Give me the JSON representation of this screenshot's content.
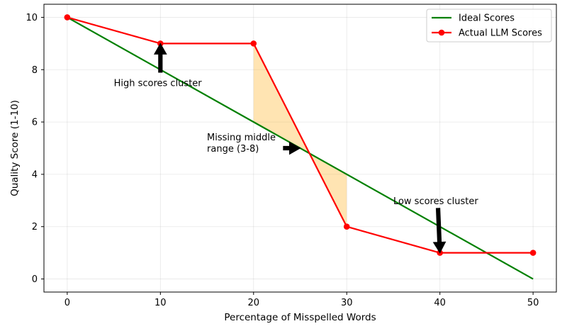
{
  "chart_data": {
    "type": "line",
    "xlabel": "Percentage of Misspelled Words",
    "ylabel": "Quality Score (1-10)",
    "xlim": [
      -2.5,
      52.5
    ],
    "ylim": [
      -0.5,
      10.5
    ],
    "xticks": [
      0,
      10,
      20,
      30,
      40,
      50
    ],
    "yticks": [
      0,
      2,
      4,
      6,
      8,
      10
    ],
    "grid": true,
    "legend_position": "top-right",
    "series": [
      {
        "name": "Ideal Scores",
        "x": [
          0,
          50
        ],
        "y": [
          10,
          0
        ],
        "color": "#008000",
        "marker": "none"
      },
      {
        "name": "Actual LLM Scores",
        "x": [
          0,
          10,
          20,
          30,
          40,
          50
        ],
        "y": [
          10,
          9,
          9,
          2,
          1,
          1
        ],
        "color": "#ff0000",
        "marker": "circle"
      }
    ],
    "fill_between": {
      "x_range": [
        20,
        30
      ],
      "color": "#ffa500",
      "opacity": 0.3
    },
    "annotations": [
      {
        "lines": [
          "High scores cluster"
        ],
        "text_at": [
          5,
          7.5
        ],
        "arrow_from": [
          10,
          7.9
        ],
        "arrow_to": [
          10,
          9.0
        ]
      },
      {
        "lines": [
          "Missing middle",
          "range (3-8)"
        ],
        "text_at": [
          15,
          5.0
        ],
        "arrow_from": [
          23.2,
          5.0
        ],
        "arrow_to": [
          25.0,
          5.0
        ]
      },
      {
        "lines": [
          "Low scores cluster"
        ],
        "text_at": [
          35,
          3.0
        ],
        "arrow_from": [
          39.8,
          2.7
        ],
        "arrow_to": [
          40.0,
          1.0
        ]
      }
    ]
  }
}
